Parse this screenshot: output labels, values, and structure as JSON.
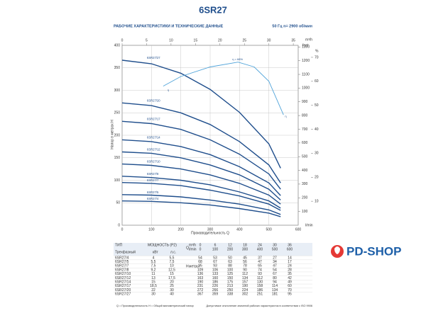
{
  "chart_data": {
    "type": "line",
    "title": "6SR27",
    "subtitle": "РАБОЧИЕ ХАРАКТЕРИСТИКИ И ТЕХНИЧЕСКИЕ ДАННЫЕ",
    "speed": "50 Гц  n= 2900 об/мин",
    "xlabel": "Производительность Q",
    "xunit": "l/min",
    "ylabel": "Напор в метрах H",
    "xlim": [
      0,
      600
    ],
    "xticks": [
      0,
      100,
      200,
      300,
      400,
      500,
      600
    ],
    "ylim": [
      0,
      400
    ],
    "yticks": [
      0,
      50,
      100,
      150,
      200,
      250,
      300,
      350,
      400
    ],
    "x2lim": [
      0,
      36
    ],
    "x2ticks": [
      0,
      5,
      10,
      15,
      20,
      25,
      30,
      35
    ],
    "x2label": "m³/h",
    "y3lim": [
      0,
      1312
    ],
    "y3ticks": [
      100,
      200,
      300,
      400,
      500,
      600,
      700,
      800,
      900,
      1000,
      1100,
      1200,
      1300
    ],
    "y3label": "feet",
    "y2lim": [
      0,
      75
    ],
    "y2ticks": [
      10,
      20,
      30,
      40,
      50,
      60,
      70
    ],
    "y2label": "%",
    "grid": true,
    "annotation": "η = 68%",
    "series": [
      {
        "name": "6SR27/27",
        "color": "#1f4e8c",
        "x": [
          0,
          100,
          200,
          300,
          400,
          500,
          540
        ],
        "values": [
          367,
          359,
          338,
          302,
          251,
          181,
          127
        ]
      },
      {
        "name": "6SR27/20",
        "color": "#1f4e8c",
        "x": [
          0,
          100,
          200,
          300,
          400,
          500,
          540
        ],
        "values": [
          272,
          266,
          250,
          224,
          186,
          134,
          94
        ]
      },
      {
        "name": "6SR27/17",
        "color": "#1f4e8c",
        "x": [
          0,
          100,
          200,
          300,
          400,
          500,
          540
        ],
        "values": [
          231,
          226,
          213,
          190,
          158,
          114,
          80
        ]
      },
      {
        "name": "6SR27/14",
        "color": "#1f4e8c",
        "x": [
          0,
          100,
          200,
          300,
          400,
          500,
          540
        ],
        "values": [
          190,
          186,
          175,
          157,
          130,
          94,
          66
        ]
      },
      {
        "name": "6SR27/12",
        "color": "#1f4e8c",
        "x": [
          0,
          100,
          200,
          300,
          400,
          500,
          540
        ],
        "values": [
          163,
          160,
          150,
          134,
          112,
          80,
          56
        ]
      },
      {
        "name": "6SR27/10",
        "color": "#1f4e8c",
        "x": [
          0,
          100,
          200,
          300,
          400,
          500,
          540
        ],
        "values": [
          136,
          133,
          125,
          112,
          93,
          67,
          47
        ]
      },
      {
        "name": "6SR27/8",
        "color": "#1f4e8c",
        "x": [
          0,
          100,
          200,
          300,
          400,
          500,
          540
        ],
        "values": [
          109,
          106,
          100,
          90,
          74,
          54,
          38
        ]
      },
      {
        "name": "6SR27/7",
        "color": "#1f4e8c",
        "x": [
          0,
          100,
          200,
          300,
          400,
          500,
          540
        ],
        "values": [
          95,
          93,
          88,
          78,
          65,
          47,
          33
        ]
      },
      {
        "name": "6SR27/5",
        "color": "#1f4e8c",
        "x": [
          0,
          100,
          200,
          300,
          400,
          500,
          540
        ],
        "values": [
          68,
          67,
          63,
          56,
          47,
          34,
          24
        ]
      },
      {
        "name": "6SR27/4",
        "color": "#1f4e8c",
        "x": [
          0,
          100,
          200,
          300,
          400,
          500,
          540
        ],
        "values": [
          54,
          53,
          50,
          45,
          37,
          27,
          19
        ]
      },
      {
        "name": "η",
        "color": "#4fa3d9",
        "axis": "y2",
        "x": [
          140,
          200,
          300,
          395,
          450,
          500,
          550
        ],
        "values": [
          58,
          62,
          66,
          68,
          66,
          60,
          46
        ]
      }
    ]
  },
  "table": {
    "head": {
      "type": "ТИП",
      "phase": "Трехфазный",
      "power": "МОЩНОСТЬ (P2)",
      "kw": "кВт",
      "hp": "л.с.",
      "q": "Q",
      "qm3": "m³/h",
      "ql": "l/min",
      "h": "H",
      "hm": "метры"
    },
    "q_m3h": [
      0,
      6,
      12,
      18,
      24,
      30,
      36
    ],
    "q_lmin": [
      0,
      100,
      200,
      300,
      400,
      500,
      600
    ],
    "rows": [
      [
        "6SR27/4",
        "4",
        "5,5",
        "54",
        "53",
        "50",
        "45",
        "37",
        "27",
        "14"
      ],
      [
        "6SR27/5",
        "5,5",
        "7,5",
        "68",
        "67",
        "63",
        "56",
        "47",
        "34",
        "17"
      ],
      [
        "6SR27/7",
        "7,5",
        "10",
        "95",
        "93",
        "88",
        "78",
        "65",
        "47",
        "24"
      ],
      [
        "6SR27/8",
        "9,2",
        "12,5",
        "109",
        "106",
        "100",
        "90",
        "74",
        "54",
        "28"
      ],
      [
        "6SR27/10",
        "11",
        "15",
        "136",
        "133",
        "125",
        "112",
        "93",
        "67",
        "35"
      ],
      [
        "6SR27/12",
        "13",
        "17,5",
        "163",
        "160",
        "150",
        "134",
        "112",
        "80",
        "42"
      ],
      [
        "6SR27/14",
        "15",
        "20",
        "190",
        "186",
        "175",
        "157",
        "130",
        "94",
        "49"
      ],
      [
        "6SR27/17",
        "18,5",
        "25",
        "231",
        "226",
        "213",
        "190",
        "158",
        "114",
        "60"
      ],
      [
        "6SR27/20",
        "22",
        "30",
        "272",
        "266",
        "250",
        "224",
        "186",
        "134",
        "70"
      ],
      [
        "6SR27/27",
        "30",
        "40",
        "367",
        "359",
        "338",
        "302",
        "251",
        "181",
        "95"
      ]
    ]
  },
  "footnote": "Q = Производительность   H = Общий манометрический напор",
  "tolerance": "Допустимое отклонение значений рабочих характеристик в соответствии с ISO 9906",
  "logo": "PD-SHOP"
}
